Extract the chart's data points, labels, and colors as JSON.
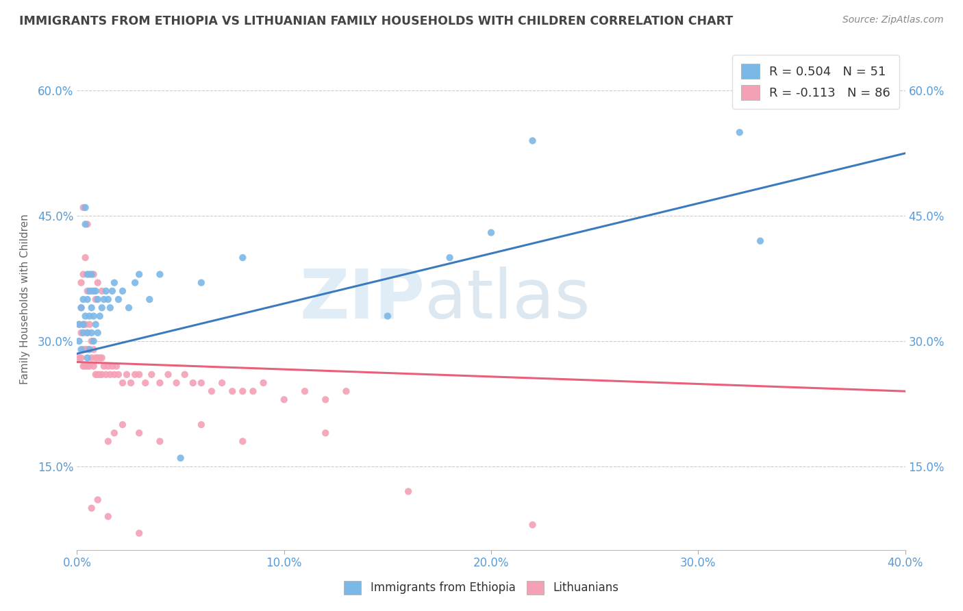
{
  "title": "IMMIGRANTS FROM ETHIOPIA VS LITHUANIAN FAMILY HOUSEHOLDS WITH CHILDREN CORRELATION CHART",
  "source": "Source: ZipAtlas.com",
  "xlabel_bottom": "Immigrants from Ethiopia",
  "xlabel_right_label": "Lithuanians",
  "ylabel": "Family Households with Children",
  "xlim": [
    0.0,
    0.4
  ],
  "ylim": [
    0.05,
    0.65
  ],
  "xticks": [
    0.0,
    0.1,
    0.2,
    0.3,
    0.4
  ],
  "yticks": [
    0.15,
    0.3,
    0.45,
    0.6
  ],
  "ytick_labels": [
    "15.0%",
    "30.0%",
    "45.0%",
    "60.0%"
  ],
  "xtick_labels": [
    "0.0%",
    "10.0%",
    "20.0%",
    "30.0%",
    "40.0%"
  ],
  "blue_color": "#7ab8e8",
  "pink_color": "#f4a0b5",
  "blue_line_color": "#3a7abf",
  "pink_line_color": "#e8607a",
  "legend_R_blue": "R = 0.504",
  "legend_N_blue": "N = 51",
  "legend_R_pink": "R = -0.113",
  "legend_N_pink": "N = 86",
  "blue_scatter_x": [
    0.001,
    0.001,
    0.002,
    0.002,
    0.003,
    0.003,
    0.003,
    0.004,
    0.004,
    0.004,
    0.005,
    0.005,
    0.005,
    0.005,
    0.006,
    0.006,
    0.006,
    0.007,
    0.007,
    0.007,
    0.008,
    0.008,
    0.008,
    0.009,
    0.009,
    0.01,
    0.01,
    0.011,
    0.012,
    0.013,
    0.014,
    0.015,
    0.016,
    0.017,
    0.018,
    0.02,
    0.022,
    0.025,
    0.028,
    0.03,
    0.035,
    0.04,
    0.05,
    0.06,
    0.08,
    0.15,
    0.18,
    0.2,
    0.22,
    0.32,
    0.33
  ],
  "blue_scatter_y": [
    0.3,
    0.32,
    0.29,
    0.34,
    0.31,
    0.35,
    0.32,
    0.44,
    0.46,
    0.33,
    0.28,
    0.31,
    0.35,
    0.38,
    0.29,
    0.33,
    0.36,
    0.31,
    0.34,
    0.38,
    0.3,
    0.33,
    0.36,
    0.32,
    0.36,
    0.31,
    0.35,
    0.33,
    0.34,
    0.35,
    0.36,
    0.35,
    0.34,
    0.36,
    0.37,
    0.35,
    0.36,
    0.34,
    0.37,
    0.38,
    0.35,
    0.38,
    0.16,
    0.37,
    0.4,
    0.33,
    0.4,
    0.43,
    0.54,
    0.55,
    0.42
  ],
  "pink_scatter_x": [
    0.001,
    0.001,
    0.002,
    0.002,
    0.002,
    0.003,
    0.003,
    0.003,
    0.004,
    0.004,
    0.004,
    0.005,
    0.005,
    0.005,
    0.006,
    0.006,
    0.006,
    0.007,
    0.007,
    0.008,
    0.008,
    0.009,
    0.009,
    0.01,
    0.01,
    0.011,
    0.011,
    0.012,
    0.012,
    0.013,
    0.014,
    0.015,
    0.016,
    0.017,
    0.018,
    0.019,
    0.02,
    0.022,
    0.024,
    0.026,
    0.028,
    0.03,
    0.033,
    0.036,
    0.04,
    0.044,
    0.048,
    0.052,
    0.056,
    0.06,
    0.065,
    0.07,
    0.075,
    0.08,
    0.085,
    0.09,
    0.1,
    0.11,
    0.12,
    0.13,
    0.002,
    0.003,
    0.004,
    0.005,
    0.006,
    0.007,
    0.008,
    0.009,
    0.01,
    0.012,
    0.015,
    0.018,
    0.022,
    0.03,
    0.04,
    0.06,
    0.08,
    0.12,
    0.16,
    0.22,
    0.003,
    0.005,
    0.007,
    0.01,
    0.015,
    0.03
  ],
  "pink_scatter_y": [
    0.28,
    0.32,
    0.28,
    0.31,
    0.34,
    0.27,
    0.29,
    0.32,
    0.27,
    0.29,
    0.32,
    0.27,
    0.29,
    0.31,
    0.27,
    0.29,
    0.32,
    0.28,
    0.3,
    0.27,
    0.29,
    0.26,
    0.28,
    0.26,
    0.28,
    0.26,
    0.28,
    0.26,
    0.28,
    0.27,
    0.26,
    0.27,
    0.26,
    0.27,
    0.26,
    0.27,
    0.26,
    0.25,
    0.26,
    0.25,
    0.26,
    0.26,
    0.25,
    0.26,
    0.25,
    0.26,
    0.25,
    0.26,
    0.25,
    0.25,
    0.24,
    0.25,
    0.24,
    0.24,
    0.24,
    0.25,
    0.23,
    0.24,
    0.23,
    0.24,
    0.37,
    0.38,
    0.4,
    0.36,
    0.38,
    0.36,
    0.38,
    0.35,
    0.37,
    0.36,
    0.18,
    0.19,
    0.2,
    0.19,
    0.18,
    0.2,
    0.18,
    0.19,
    0.12,
    0.08,
    0.46,
    0.44,
    0.1,
    0.11,
    0.09,
    0.07
  ],
  "watermark_zip": "ZIP",
  "watermark_atlas": "atlas",
  "background_color": "#ffffff",
  "grid_color": "#cccccc",
  "title_color": "#444444",
  "axis_label_color": "#5b9bd5"
}
